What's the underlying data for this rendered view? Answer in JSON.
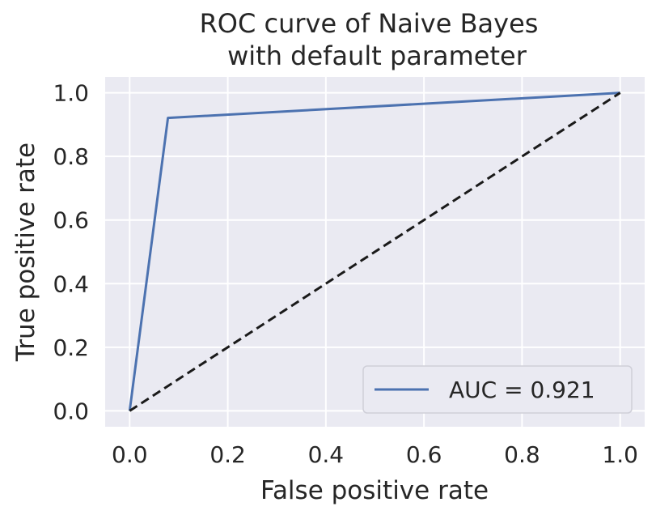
{
  "chart_data": {
    "type": "line",
    "title_lines": [
      "ROC curve of Naive Bayes",
      "with default parameter"
    ],
    "xlabel": "False positive rate",
    "ylabel": "True positive rate",
    "xlim": [
      -0.05,
      1.05
    ],
    "ylim": [
      -0.05,
      1.05
    ],
    "xticks": [
      0.0,
      0.2,
      0.4,
      0.6,
      0.8,
      1.0
    ],
    "xtick_labels": [
      "0.0",
      "0.2",
      "0.4",
      "0.6",
      "0.8",
      "1.0"
    ],
    "yticks": [
      0.0,
      0.2,
      0.4,
      0.6,
      0.8,
      1.0
    ],
    "ytick_labels": [
      "0.0",
      "0.2",
      "0.4",
      "0.6",
      "0.8",
      "1.0"
    ],
    "grid": true,
    "legend_position": "bottom-right",
    "series": [
      {
        "name": "AUC = 0.921",
        "color": "#4c72b0",
        "style": "solid",
        "x": [
          0.0,
          0.078,
          1.0
        ],
        "y": [
          0.0,
          0.921,
          1.0
        ]
      },
      {
        "color": "#1a1a1a",
        "style": "dashed",
        "x": [
          0.0,
          1.0
        ],
        "y": [
          0.0,
          1.0
        ]
      }
    ]
  },
  "colors": {
    "plot_background": "#eaeaf2",
    "grid": "#ffffff",
    "text": "#262626"
  }
}
